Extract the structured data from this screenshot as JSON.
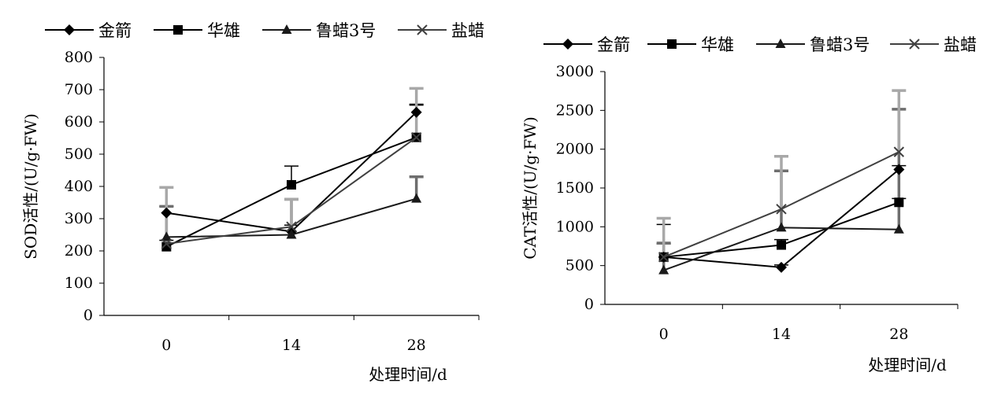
{
  "colors": {
    "jinjian": "#000000",
    "huaxiong": "#000000",
    "lula3": "#1a1a1a",
    "yanla": "#404040",
    "err_jinjian": "#000000",
    "err_huaxiong": "#000000",
    "err_lula3": "#6e6e6e",
    "err_yanla": "#a8a8a8"
  },
  "chart_data": [
    {
      "type": "line",
      "ylabel": "SOD活性/(U/g·FW)",
      "xlabel": "处理时间/d",
      "x": [
        0,
        14,
        28
      ],
      "ylim": [
        0,
        800
      ],
      "yticks": [
        0,
        100,
        200,
        300,
        400,
        500,
        600,
        700,
        800
      ],
      "grid": false,
      "legend": "top",
      "series": [
        {
          "name": "金箭",
          "marker": "diamond",
          "values": [
            318,
            260,
            630
          ],
          "err": [
            20,
            20,
            25
          ]
        },
        {
          "name": "华雄",
          "marker": "square",
          "values": [
            213,
            405,
            552
          ],
          "err": [
            20,
            58,
            100
          ]
        },
        {
          "name": "鲁蜡3号",
          "marker": "triangle",
          "values": [
            243,
            250,
            362
          ],
          "err": [
            95,
            110,
            68
          ]
        },
        {
          "name": "盐蜡",
          "marker": "x",
          "values": [
            222,
            275,
            552
          ],
          "err": [
            175,
            85,
            152
          ]
        }
      ]
    },
    {
      "type": "line",
      "ylabel": "CAT活性/(U/g·FW)",
      "xlabel": "处理时间/d",
      "x": [
        0,
        14,
        28
      ],
      "ylim": [
        0,
        3000
      ],
      "yticks": [
        0,
        500,
        1000,
        1500,
        2000,
        2500,
        3000
      ],
      "grid": false,
      "legend": "top",
      "series": [
        {
          "name": "金箭",
          "marker": "diamond",
          "values": [
            610,
            478,
            1738
          ],
          "err": [
            420,
            30,
            50
          ]
        },
        {
          "name": "华雄",
          "marker": "square",
          "values": [
            610,
            765,
            1315
          ],
          "err": [
            170,
            70,
            50
          ]
        },
        {
          "name": "鲁蜡3号",
          "marker": "triangle",
          "values": [
            440,
            990,
            965
          ],
          "err": [
            350,
            730,
            1550
          ]
        },
        {
          "name": "盐蜡",
          "marker": "x",
          "values": [
            610,
            1228,
            1965
          ],
          "err": [
            500,
            680,
            790
          ]
        }
      ]
    }
  ]
}
